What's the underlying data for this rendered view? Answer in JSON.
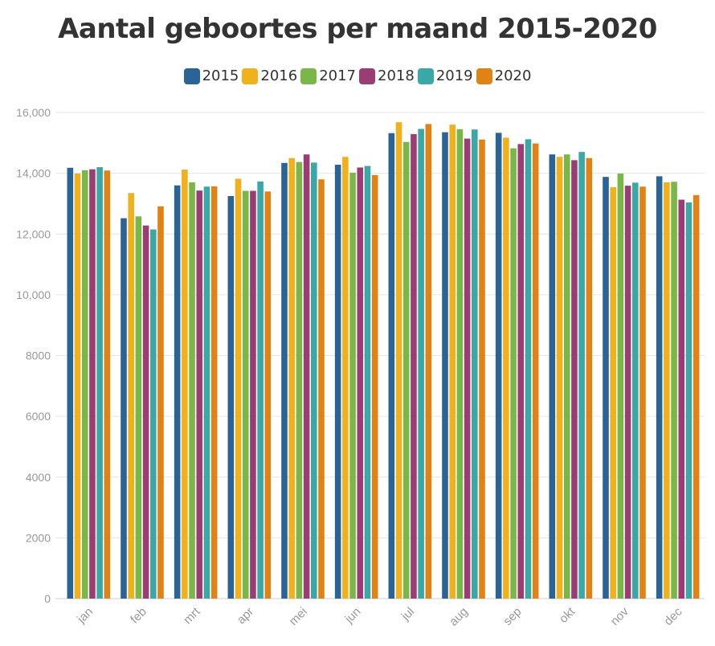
{
  "chart_data": {
    "type": "bar",
    "title": "Aantal geboortes per maand 2015-2020",
    "xlabel": "",
    "ylabel": "",
    "ylim": [
      0,
      16000
    ],
    "yticks": [
      "0",
      "2000",
      "4000",
      "6000",
      "8000",
      "10,000",
      "12,000",
      "14,000",
      "16,000"
    ],
    "ytick_values": [
      0,
      2000,
      4000,
      6000,
      8000,
      10000,
      12000,
      14000,
      16000
    ],
    "grid": true,
    "legend_position": "top-center",
    "categories": [
      "jan",
      "feb",
      "mrt",
      "apr",
      "mei",
      "jun",
      "jul",
      "aug",
      "sep",
      "okt",
      "nov",
      "dec"
    ],
    "series": [
      {
        "name": "2015",
        "color": "#2a6496",
        "values": [
          14180,
          12520,
          13600,
          13250,
          14340,
          14280,
          15320,
          15350,
          15330,
          14620,
          13880,
          13900
        ]
      },
      {
        "name": "2016",
        "color": "#f0b11d",
        "values": [
          13990,
          13350,
          14120,
          13820,
          14500,
          14540,
          15680,
          15600,
          15170,
          14540,
          13540,
          13700
        ]
      },
      {
        "name": "2017",
        "color": "#7ab648",
        "values": [
          14100,
          12580,
          13700,
          13420,
          14370,
          14020,
          15030,
          15450,
          14820,
          14620,
          13990,
          13720
        ]
      },
      {
        "name": "2018",
        "color": "#9c3c74",
        "values": [
          14130,
          12280,
          13430,
          13420,
          14620,
          14190,
          15290,
          15140,
          14960,
          14430,
          13590,
          13130
        ]
      },
      {
        "name": "2019",
        "color": "#3aa8a6",
        "values": [
          14200,
          12150,
          13560,
          13730,
          14350,
          14240,
          15460,
          15440,
          15120,
          14700,
          13690,
          13040
        ]
      },
      {
        "name": "2020",
        "color": "#e08214",
        "values": [
          14090,
          12910,
          13570,
          13400,
          13800,
          13940,
          15620,
          15110,
          14980,
          14500,
          13560,
          13280
        ]
      }
    ]
  }
}
